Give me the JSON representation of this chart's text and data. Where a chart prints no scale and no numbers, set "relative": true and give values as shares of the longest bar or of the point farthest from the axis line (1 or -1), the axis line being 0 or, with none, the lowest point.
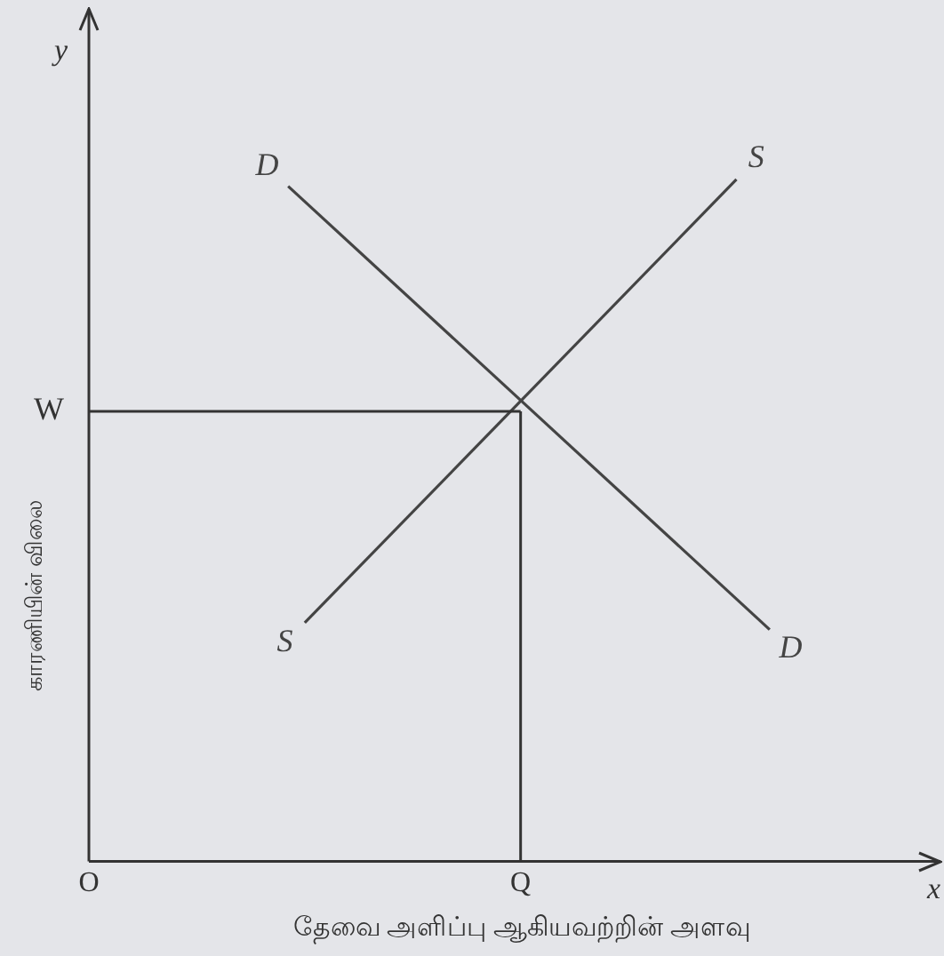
{
  "chart_data": {
    "type": "line",
    "relative": true,
    "xlabel": "தேவை அளிப்பு ஆகியவற்றின் அளவு",
    "ylabel": "காரணியின் விலை",
    "categories": [
      "O",
      null,
      null,
      null,
      null,
      null,
      null,
      null,
      null,
      null,
      null,
      null,
      null,
      null,
      null,
      null,
      null,
      null,
      null,
      null,
      null,
      null,
      null,
      null,
      null,
      null,
      "Q",
      null,
      null,
      null,
      null,
      null,
      null,
      null,
      null,
      null,
      null,
      null,
      null,
      null,
      null,
      null,
      null,
      null,
      null,
      null,
      null,
      null,
      null,
      null,
      null
    ],
    "ref_lines": [
      {
        "axis": "y",
        "value": 0.66,
        "label": "W"
      },
      {
        "axis": "x",
        "value": "Q"
      }
    ],
    "annotations": [
      "y",
      "x"
    ],
    "grid": false,
    "legend": false,
    "marker": "none",
    "line_style": "solid",
    "series": [
      {
        "name": "D",
        "color": "#444444",
        "values": [
          null,
          null,
          null,
          null,
          null,
          null,
          null,
          null,
          null,
          null,
          null,
          null,
          0.99,
          null,
          null,
          null,
          null,
          null,
          null,
          null,
          null,
          null,
          null,
          null,
          null,
          null,
          null,
          null,
          null,
          null,
          null,
          null,
          null,
          null,
          null,
          null,
          null,
          null,
          null,
          null,
          null,
          0.34,
          null,
          null,
          null,
          null,
          null,
          null,
          null,
          null,
          null
        ]
      },
      {
        "name": "S",
        "color": "#444444",
        "values": [
          null,
          null,
          null,
          null,
          null,
          null,
          null,
          null,
          null,
          null,
          null,
          null,
          null,
          0.35,
          null,
          null,
          null,
          null,
          null,
          null,
          null,
          null,
          null,
          null,
          null,
          null,
          null,
          null,
          null,
          null,
          null,
          null,
          null,
          null,
          null,
          null,
          null,
          null,
          null,
          1,
          null,
          null,
          null,
          null,
          null,
          null,
          null,
          null,
          null,
          null,
          null
        ]
      }
    ]
  }
}
